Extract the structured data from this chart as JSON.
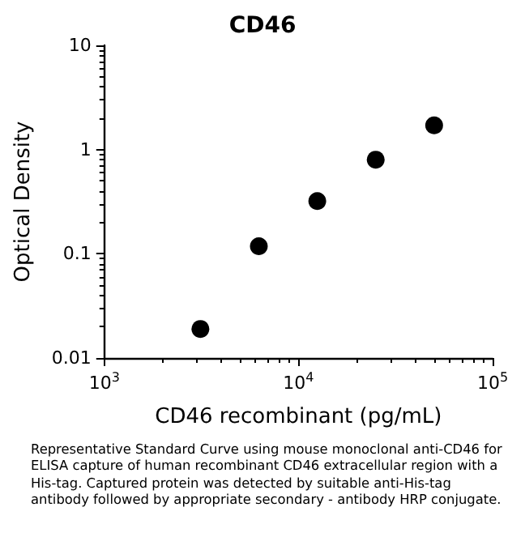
{
  "chart_data": {
    "type": "scatter",
    "title": "CD46",
    "xlabel": "CD46 recombinant (pg/mL)",
    "ylabel": "Optical Density",
    "x": [
      3125,
      6250,
      12500,
      25000,
      50000
    ],
    "series": [
      {
        "color": "#000000",
        "values": [
          0.019,
          0.118,
          0.32,
          0.8,
          1.71
        ]
      }
    ],
    "log": "xy",
    "xlim": [
      1000,
      100000
    ],
    "xticks": [
      {
        "value": 1000,
        "label": "10$^{3}$"
      },
      {
        "value": 10000,
        "label": "10$^{4}$"
      },
      {
        "value": 100000,
        "label": "10$^{5}$"
      }
    ],
    "ylim": [
      0.01,
      10
    ],
    "yticks": [
      0.01,
      0.1,
      1,
      10
    ],
    "grid": false,
    "marker": "circle",
    "annotations": [
      "Representative Standard Curve using mouse monoclonal anti-CD46 for ELISA capture of human recombinant CD46 extracellular region with a His-tag. Captured protein was detected by suitable anti-His-tag antibody followed by appropriate secondary - antibody HRP conjugate."
    ]
  }
}
